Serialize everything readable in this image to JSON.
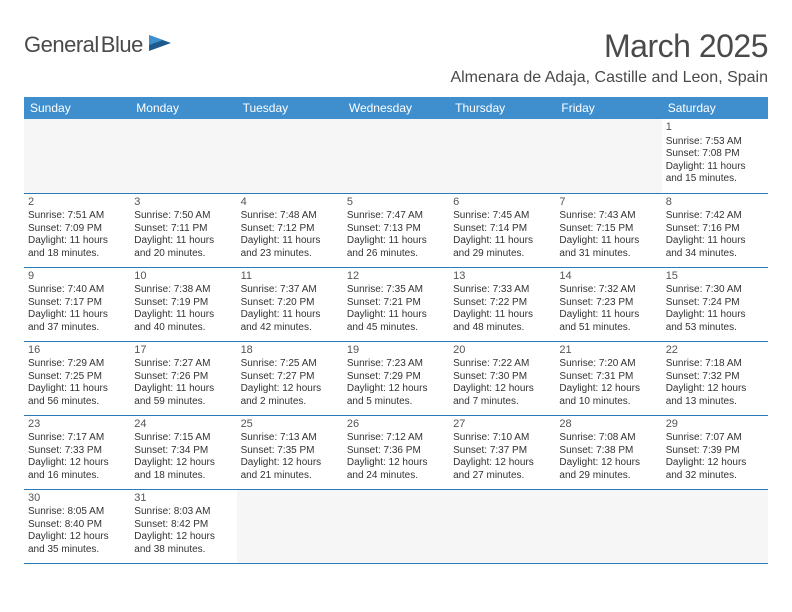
{
  "logo": {
    "text_a": "General",
    "text_b": "Blue"
  },
  "title": "March 2025",
  "location": "Almenara de Adaja, Castille and Leon, Spain",
  "colors": {
    "header_bg": "#3f8fcf",
    "header_text": "#ffffff",
    "cell_border": "#2a7ab9",
    "empty_bg": "#f6f6f6",
    "text": "#333333",
    "title_text": "#4a4a4a",
    "logo_blue": "#2a7ab9"
  },
  "dayHeaders": [
    "Sunday",
    "Monday",
    "Tuesday",
    "Wednesday",
    "Thursday",
    "Friday",
    "Saturday"
  ],
  "weeks": [
    [
      null,
      null,
      null,
      null,
      null,
      null,
      {
        "n": 1,
        "sr": "7:53 AM",
        "ss": "7:08 PM",
        "dl": "11 hours and 15 minutes."
      }
    ],
    [
      {
        "n": 2,
        "sr": "7:51 AM",
        "ss": "7:09 PM",
        "dl": "11 hours and 18 minutes."
      },
      {
        "n": 3,
        "sr": "7:50 AM",
        "ss": "7:11 PM",
        "dl": "11 hours and 20 minutes."
      },
      {
        "n": 4,
        "sr": "7:48 AM",
        "ss": "7:12 PM",
        "dl": "11 hours and 23 minutes."
      },
      {
        "n": 5,
        "sr": "7:47 AM",
        "ss": "7:13 PM",
        "dl": "11 hours and 26 minutes."
      },
      {
        "n": 6,
        "sr": "7:45 AM",
        "ss": "7:14 PM",
        "dl": "11 hours and 29 minutes."
      },
      {
        "n": 7,
        "sr": "7:43 AM",
        "ss": "7:15 PM",
        "dl": "11 hours and 31 minutes."
      },
      {
        "n": 8,
        "sr": "7:42 AM",
        "ss": "7:16 PM",
        "dl": "11 hours and 34 minutes."
      }
    ],
    [
      {
        "n": 9,
        "sr": "7:40 AM",
        "ss": "7:17 PM",
        "dl": "11 hours and 37 minutes."
      },
      {
        "n": 10,
        "sr": "7:38 AM",
        "ss": "7:19 PM",
        "dl": "11 hours and 40 minutes."
      },
      {
        "n": 11,
        "sr": "7:37 AM",
        "ss": "7:20 PM",
        "dl": "11 hours and 42 minutes."
      },
      {
        "n": 12,
        "sr": "7:35 AM",
        "ss": "7:21 PM",
        "dl": "11 hours and 45 minutes."
      },
      {
        "n": 13,
        "sr": "7:33 AM",
        "ss": "7:22 PM",
        "dl": "11 hours and 48 minutes."
      },
      {
        "n": 14,
        "sr": "7:32 AM",
        "ss": "7:23 PM",
        "dl": "11 hours and 51 minutes."
      },
      {
        "n": 15,
        "sr": "7:30 AM",
        "ss": "7:24 PM",
        "dl": "11 hours and 53 minutes."
      }
    ],
    [
      {
        "n": 16,
        "sr": "7:29 AM",
        "ss": "7:25 PM",
        "dl": "11 hours and 56 minutes."
      },
      {
        "n": 17,
        "sr": "7:27 AM",
        "ss": "7:26 PM",
        "dl": "11 hours and 59 minutes."
      },
      {
        "n": 18,
        "sr": "7:25 AM",
        "ss": "7:27 PM",
        "dl": "12 hours and 2 minutes."
      },
      {
        "n": 19,
        "sr": "7:23 AM",
        "ss": "7:29 PM",
        "dl": "12 hours and 5 minutes."
      },
      {
        "n": 20,
        "sr": "7:22 AM",
        "ss": "7:30 PM",
        "dl": "12 hours and 7 minutes."
      },
      {
        "n": 21,
        "sr": "7:20 AM",
        "ss": "7:31 PM",
        "dl": "12 hours and 10 minutes."
      },
      {
        "n": 22,
        "sr": "7:18 AM",
        "ss": "7:32 PM",
        "dl": "12 hours and 13 minutes."
      }
    ],
    [
      {
        "n": 23,
        "sr": "7:17 AM",
        "ss": "7:33 PM",
        "dl": "12 hours and 16 minutes."
      },
      {
        "n": 24,
        "sr": "7:15 AM",
        "ss": "7:34 PM",
        "dl": "12 hours and 18 minutes."
      },
      {
        "n": 25,
        "sr": "7:13 AM",
        "ss": "7:35 PM",
        "dl": "12 hours and 21 minutes."
      },
      {
        "n": 26,
        "sr": "7:12 AM",
        "ss": "7:36 PM",
        "dl": "12 hours and 24 minutes."
      },
      {
        "n": 27,
        "sr": "7:10 AM",
        "ss": "7:37 PM",
        "dl": "12 hours and 27 minutes."
      },
      {
        "n": 28,
        "sr": "7:08 AM",
        "ss": "7:38 PM",
        "dl": "12 hours and 29 minutes."
      },
      {
        "n": 29,
        "sr": "7:07 AM",
        "ss": "7:39 PM",
        "dl": "12 hours and 32 minutes."
      }
    ],
    [
      {
        "n": 30,
        "sr": "8:05 AM",
        "ss": "8:40 PM",
        "dl": "12 hours and 35 minutes."
      },
      {
        "n": 31,
        "sr": "8:03 AM",
        "ss": "8:42 PM",
        "dl": "12 hours and 38 minutes."
      },
      null,
      null,
      null,
      null,
      null
    ]
  ],
  "labels": {
    "sunrise": "Sunrise:",
    "sunset": "Sunset:",
    "daylight": "Daylight:"
  }
}
